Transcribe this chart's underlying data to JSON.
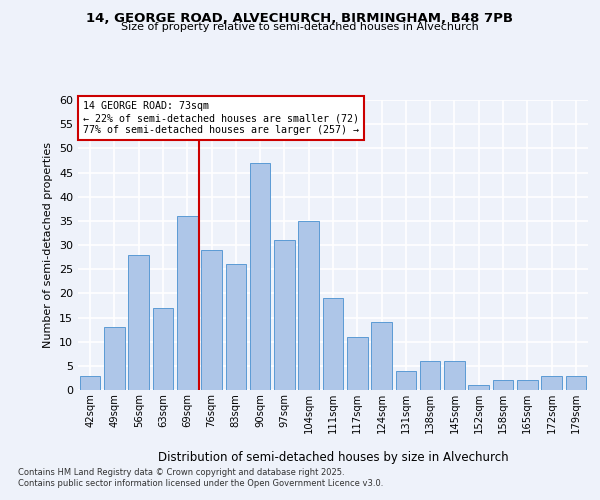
{
  "title_line1": "14, GEORGE ROAD, ALVECHURCH, BIRMINGHAM, B48 7PB",
  "title_line2": "Size of property relative to semi-detached houses in Alvechurch",
  "xlabel": "Distribution of semi-detached houses by size in Alvechurch",
  "ylabel": "Number of semi-detached properties",
  "categories": [
    "42sqm",
    "49sqm",
    "56sqm",
    "63sqm",
    "69sqm",
    "76sqm",
    "83sqm",
    "90sqm",
    "97sqm",
    "104sqm",
    "111sqm",
    "117sqm",
    "124sqm",
    "131sqm",
    "138sqm",
    "145sqm",
    "152sqm",
    "158sqm",
    "165sqm",
    "172sqm",
    "179sqm"
  ],
  "values": [
    3,
    13,
    28,
    17,
    36,
    29,
    26,
    47,
    31,
    35,
    19,
    11,
    14,
    4,
    6,
    6,
    1,
    2,
    2,
    3,
    3
  ],
  "bar_color": "#aec6e8",
  "bar_edge_color": "#5b9bd5",
  "vline_color": "#cc0000",
  "annotation_box_edge_color": "#cc0000",
  "annotation_text_line1": "14 GEORGE ROAD: 73sqm",
  "annotation_text_line2": "← 22% of semi-detached houses are smaller (72)",
  "annotation_text_line3": "77% of semi-detached houses are larger (257) →",
  "background_color": "#eef2fa",
  "grid_color": "#ffffff",
  "ylim": [
    0,
    60
  ],
  "yticks": [
    0,
    5,
    10,
    15,
    20,
    25,
    30,
    35,
    40,
    45,
    50,
    55,
    60
  ],
  "vline_x_index": 4.5,
  "footnote_line1": "Contains HM Land Registry data © Crown copyright and database right 2025.",
  "footnote_line2": "Contains public sector information licensed under the Open Government Licence v3.0."
}
